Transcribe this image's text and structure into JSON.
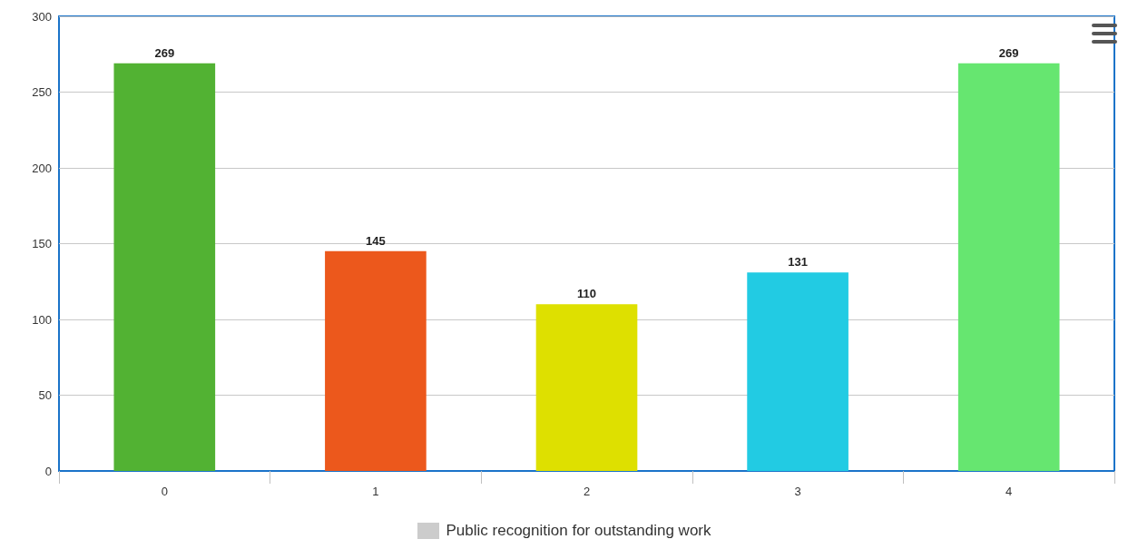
{
  "chart_data": {
    "type": "bar",
    "categories": [
      "0",
      "1",
      "2",
      "3",
      "4"
    ],
    "series": [
      {
        "name": "Public recognition for outstanding work",
        "color": "#cccccc",
        "values": [
          269,
          145,
          110,
          131,
          269
        ],
        "colors": [
          "#52b233",
          "#ec581c",
          "#dee000",
          "#22cbe3",
          "#66e670"
        ]
      }
    ],
    "ylim": [
      0,
      300
    ],
    "yticks": [
      0,
      50,
      100,
      150,
      200,
      250,
      300
    ],
    "grid": "y",
    "legend": "bottom",
    "data_labels": true
  }
}
